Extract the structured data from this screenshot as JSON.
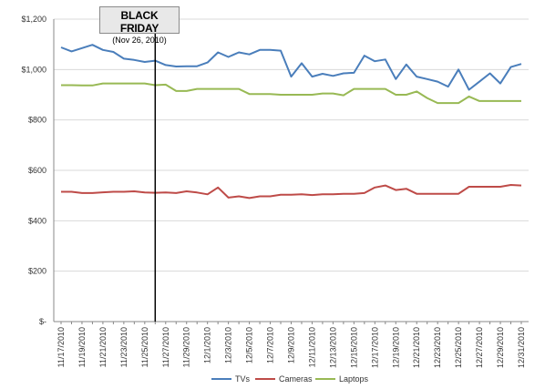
{
  "chart_data": {
    "type": "line",
    "title": "",
    "xlabel": "",
    "ylabel": "",
    "ylim": [
      0,
      1200
    ],
    "yticks": [
      "$-",
      "$200",
      "$400",
      "$600",
      "$800",
      "$1,000",
      "$1,200"
    ],
    "x": [
      "11/17/2010",
      "11/18/2010",
      "11/19/2010",
      "11/20/2010",
      "11/21/2010",
      "11/22/2010",
      "11/23/2010",
      "11/24/2010",
      "11/25/2010",
      "11/26/2010",
      "11/27/2010",
      "11/28/2010",
      "11/29/2010",
      "11/30/2010",
      "12/1/2010",
      "12/2/2010",
      "12/3/2010",
      "12/4/2010",
      "12/5/2010",
      "12/6/2010",
      "12/7/2010",
      "12/8/2010",
      "12/9/2010",
      "12/10/2010",
      "12/11/2010",
      "12/12/2010",
      "12/13/2010",
      "12/14/2010",
      "12/15/2010",
      "12/16/2010",
      "12/17/2010",
      "12/18/2010",
      "12/19/2010",
      "12/20/2010",
      "12/21/2010",
      "12/22/2010",
      "12/23/2010",
      "12/24/2010",
      "12/25/2010",
      "12/26/2010",
      "12/27/2010",
      "12/28/2010",
      "12/29/2010",
      "12/30/2010",
      "12/31/2010"
    ],
    "xtick_labels": [
      "11/17/2010",
      "11/19/2010",
      "11/21/2010",
      "11/23/2010",
      "11/25/2010",
      "11/27/2010",
      "11/29/2010",
      "12/1/2010",
      "12/3/2010",
      "12/5/2010",
      "12/7/2010",
      "12/9/2010",
      "12/11/2010",
      "12/13/2010",
      "12/15/2010",
      "12/17/2010",
      "12/19/2010",
      "12/21/2010",
      "12/23/2010",
      "12/25/2010",
      "12/27/2010",
      "12/29/2010",
      "12/31/2010"
    ],
    "series": [
      {
        "name": "TVs",
        "color": "#4a7ebb",
        "values": [
          1088,
          1072,
          1085,
          1098,
          1078,
          1070,
          1043,
          1038,
          1030,
          1035,
          1018,
          1012,
          1013,
          1013,
          1028,
          1068,
          1050,
          1068,
          1060,
          1078,
          1078,
          1075,
          972,
          1025,
          972,
          983,
          975,
          985,
          987,
          1055,
          1033,
          1040,
          962,
          1020,
          972,
          962,
          952,
          932,
          1000,
          920,
          952,
          985,
          945,
          1010,
          1022
        ]
      },
      {
        "name": "Cameras",
        "color": "#be4b48",
        "values": [
          515,
          515,
          510,
          510,
          513,
          515,
          515,
          517,
          512,
          511,
          512,
          510,
          517,
          512,
          505,
          532,
          492,
          497,
          490,
          497,
          497,
          503,
          503,
          505,
          502,
          505,
          505,
          507,
          507,
          510,
          532,
          540,
          522,
          527,
          507,
          507,
          507,
          507,
          507,
          535,
          535,
          535,
          535,
          542,
          540
        ]
      },
      {
        "name": "Laptops",
        "color": "#98b954",
        "values": [
          938,
          938,
          937,
          937,
          945,
          945,
          945,
          945,
          945,
          938,
          940,
          915,
          915,
          923,
          923,
          923,
          923,
          923,
          903,
          903,
          903,
          900,
          900,
          900,
          900,
          905,
          905,
          898,
          923,
          923,
          923,
          923,
          900,
          900,
          913,
          887,
          867,
          867,
          867,
          893,
          875,
          875,
          875,
          875,
          875
        ]
      }
    ],
    "annotation": {
      "title": "BLACK FRIDAY",
      "subtitle": "(Nov 26, 2010)",
      "x": "11/26/2010"
    },
    "legend": "bottom",
    "grid": "horizontal"
  }
}
